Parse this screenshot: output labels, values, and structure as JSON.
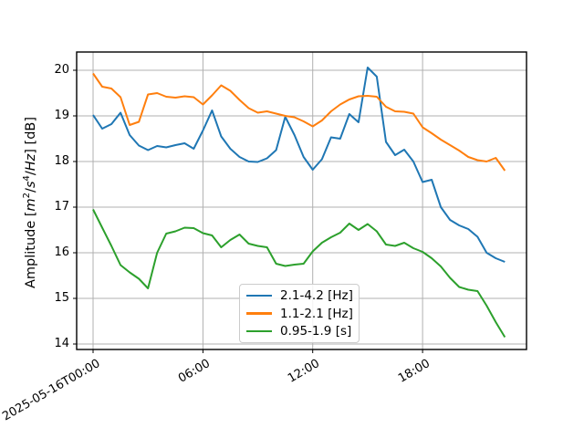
{
  "figure": {
    "background": "#ffffff",
    "ylabel": {
      "text": "Amplitude [m²/s⁴/Hz] [dB]",
      "parts": [
        {
          "text": "Amplitude [",
          "italic": false,
          "sup": false
        },
        {
          "text": "m",
          "italic": true,
          "sup": false
        },
        {
          "text": "2",
          "italic": false,
          "sup": true
        },
        {
          "text": "/",
          "italic": false,
          "sup": false
        },
        {
          "text": "s",
          "italic": true,
          "sup": false
        },
        {
          "text": "4",
          "italic": false,
          "sup": true
        },
        {
          "text": "/",
          "italic": false,
          "sup": false
        },
        {
          "text": "Hz",
          "italic": true,
          "sup": false
        },
        {
          "text": "] [dB]",
          "italic": false,
          "sup": false
        }
      ]
    }
  },
  "chart_data": {
    "type": "line",
    "title": "",
    "xlabel": "",
    "ylabel": "Amplitude [m²/s⁴/Hz] [dB]",
    "x_start": "2025-05-16T00:00",
    "x_unit": "hours since 2025-05-16T00:00",
    "x_step_hours": 0.5,
    "grid": true,
    "legend_position": "inside lower center",
    "ylim": [
      13.88,
      20.4
    ],
    "xlim_hours": [
      -0.9,
      23.7
    ],
    "yticks": [
      14,
      15,
      16,
      17,
      18,
      19,
      20
    ],
    "xticks": [
      {
        "hour": 0,
        "label": "2025-05-16T00:00"
      },
      {
        "hour": 6,
        "label": "06:00"
      },
      {
        "hour": 12,
        "label": "12:00"
      },
      {
        "hour": 18,
        "label": "18:00"
      }
    ],
    "x": [
      0,
      0.5,
      1,
      1.5,
      2,
      2.5,
      3,
      3.5,
      4,
      4.5,
      5,
      5.5,
      6,
      6.5,
      7,
      7.5,
      8,
      8.5,
      9,
      9.5,
      10,
      10.5,
      11,
      11.5,
      12,
      12.5,
      13,
      13.5,
      14,
      14.5,
      15,
      15.5,
      16,
      16.5,
      17,
      17.5,
      18,
      18.5,
      19,
      19.5,
      20,
      20.5,
      21,
      21.5,
      22,
      22.5
    ],
    "series": [
      {
        "name": "2.1-4.2 [Hz]",
        "color": "#1f77b4",
        "values": [
          19.02,
          18.72,
          18.82,
          19.07,
          18.58,
          18.35,
          18.25,
          18.34,
          18.31,
          18.36,
          18.4,
          18.28,
          18.68,
          19.12,
          18.55,
          18.28,
          18.1,
          18.0,
          17.99,
          18.07,
          18.25,
          18.98,
          18.58,
          18.1,
          17.82,
          18.05,
          18.53,
          18.5,
          19.04,
          18.86,
          20.06,
          19.86,
          18.43,
          18.14,
          18.26,
          18.0,
          17.55,
          17.6,
          17.0,
          16.72,
          16.6,
          16.52,
          16.35,
          16.0,
          15.88,
          15.8
        ]
      },
      {
        "name": "1.1-2.1 [Hz]",
        "color": "#ff7f0e",
        "values": [
          19.93,
          19.64,
          19.6,
          19.41,
          18.8,
          18.87,
          19.47,
          19.5,
          19.42,
          19.4,
          19.43,
          19.41,
          19.25,
          19.45,
          19.67,
          19.55,
          19.35,
          19.17,
          19.07,
          19.1,
          19.05,
          19.0,
          18.97,
          18.88,
          18.77,
          18.9,
          19.1,
          19.25,
          19.36,
          19.43,
          19.44,
          19.42,
          19.2,
          19.1,
          19.09,
          19.05,
          18.75,
          18.62,
          18.48,
          18.36,
          18.24,
          18.1,
          18.03,
          18.0,
          18.08,
          17.8
        ]
      },
      {
        "name": "0.95-1.9 [s]",
        "color": "#2ca02c",
        "values": [
          16.95,
          16.55,
          16.15,
          15.73,
          15.57,
          15.43,
          15.22,
          16.0,
          16.42,
          16.47,
          16.55,
          16.54,
          16.43,
          16.38,
          16.12,
          16.28,
          16.4,
          16.2,
          16.15,
          16.12,
          15.76,
          15.71,
          15.74,
          15.76,
          16.03,
          16.22,
          16.34,
          16.44,
          16.64,
          16.5,
          16.63,
          16.47,
          16.18,
          16.15,
          16.22,
          16.1,
          16.02,
          15.88,
          15.7,
          15.45,
          15.25,
          15.19,
          15.16,
          14.84,
          14.48,
          14.15
        ]
      }
    ]
  }
}
